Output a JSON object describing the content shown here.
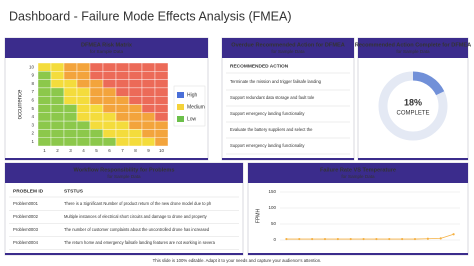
{
  "header": {
    "title": "Dashboard - Failure Mode Effects Analysis (FMEA)"
  },
  "footer": "This slide is 100% editable. Adapt it to your needs and capture your audience's attention.",
  "chart_data": [
    {
      "type": "heatmap",
      "title": "DFMEA Risk Matrix",
      "subtitle": "for Sample Data",
      "y_label": "occurrence",
      "x": [
        1,
        2,
        3,
        4,
        5,
        6,
        7,
        8,
        9,
        10
      ],
      "y": [
        10,
        9,
        8,
        7,
        6,
        5,
        4,
        3,
        2,
        1
      ],
      "z": [
        [
          2,
          2,
          3,
          3,
          4,
          4,
          4,
          4,
          4,
          4
        ],
        [
          1,
          2,
          3,
          3,
          4,
          4,
          4,
          4,
          4,
          4
        ],
        [
          1,
          2,
          2,
          3,
          3,
          4,
          4,
          4,
          4,
          4
        ],
        [
          1,
          1,
          2,
          2,
          3,
          3,
          4,
          4,
          4,
          4
        ],
        [
          1,
          1,
          2,
          2,
          3,
          3,
          3,
          4,
          4,
          4
        ],
        [
          1,
          1,
          1,
          2,
          2,
          3,
          3,
          3,
          4,
          4
        ],
        [
          1,
          1,
          1,
          2,
          2,
          2,
          3,
          3,
          3,
          4
        ],
        [
          1,
          1,
          1,
          1,
          2,
          2,
          2,
          3,
          3,
          3
        ],
        [
          1,
          1,
          1,
          1,
          1,
          2,
          2,
          2,
          3,
          3
        ],
        [
          1,
          1,
          1,
          1,
          1,
          1,
          2,
          2,
          2,
          3
        ]
      ],
      "colors": [
        "#8cc84b",
        "#f4dc3c",
        "#f3a43c",
        "#ec6a58"
      ],
      "legend": [
        {
          "name": "High",
          "color": "#4a6fd8"
        },
        {
          "name": "Medium",
          "color": "#f4d23a"
        },
        {
          "name": "Low",
          "color": "#6cc04a"
        }
      ]
    },
    {
      "type": "donut",
      "title": "Recommended Action Complete for DFMEA",
      "subtitle": "for Sample Data",
      "values": [
        18
      ],
      "value_labels": [
        "18%"
      ],
      "center_label": "COMPLETE",
      "color": "#7190d8",
      "track_color": "#e4e9f4"
    },
    {
      "type": "line",
      "title": "Failure Rate VS Temperature",
      "subtitle": "for Sample Data",
      "y_label": "FPMH",
      "categories": [
        null,
        null,
        null,
        null,
        null,
        null,
        null,
        null,
        null,
        null,
        null,
        null,
        null,
        null
      ],
      "series": [
        {
          "name": "FPMH",
          "color": "#f5b041",
          "values": [
            3,
            3,
            3,
            3,
            3,
            3,
            3,
            3,
            3,
            3,
            3,
            4,
            5,
            18
          ]
        }
      ],
      "ylim": [
        0,
        150
      ],
      "yticks": [
        0,
        50,
        100,
        150
      ],
      "grid": true
    }
  ],
  "tables": [
    {
      "title": "Overdue Recommended Action for DFMEA",
      "subtitle": "for Sample Data",
      "columns": [
        "RECOMMENDED  ACTION"
      ],
      "rows": [
        [
          "Terminate the mission and trigger failsafe landing"
        ],
        [
          "Support redundant data storage and fault tole"
        ],
        [
          "Support emergency landing functionality"
        ],
        [
          "Evaluate the battery suppliers and select the"
        ],
        [
          "Support emergency landing functionality"
        ]
      ]
    },
    {
      "title": "Workflow Responsibility for Problems",
      "subtitle": "for Sample Data",
      "columns": [
        "PROBLEM ID",
        "STSTUS"
      ],
      "rows": [
        [
          "Problem0001",
          "There is a Significant Number of product return of the new drone model due to ph"
        ],
        [
          "Problem0002",
          "Multiple instances of electrical short circuits and damage to drone and property"
        ],
        [
          "Problem0003",
          "The number of customer complaints about the uncontrolled drone has increased"
        ],
        [
          "Problem0004",
          "The return home and emergency failsafe landing features are not working in severa"
        ]
      ]
    }
  ]
}
